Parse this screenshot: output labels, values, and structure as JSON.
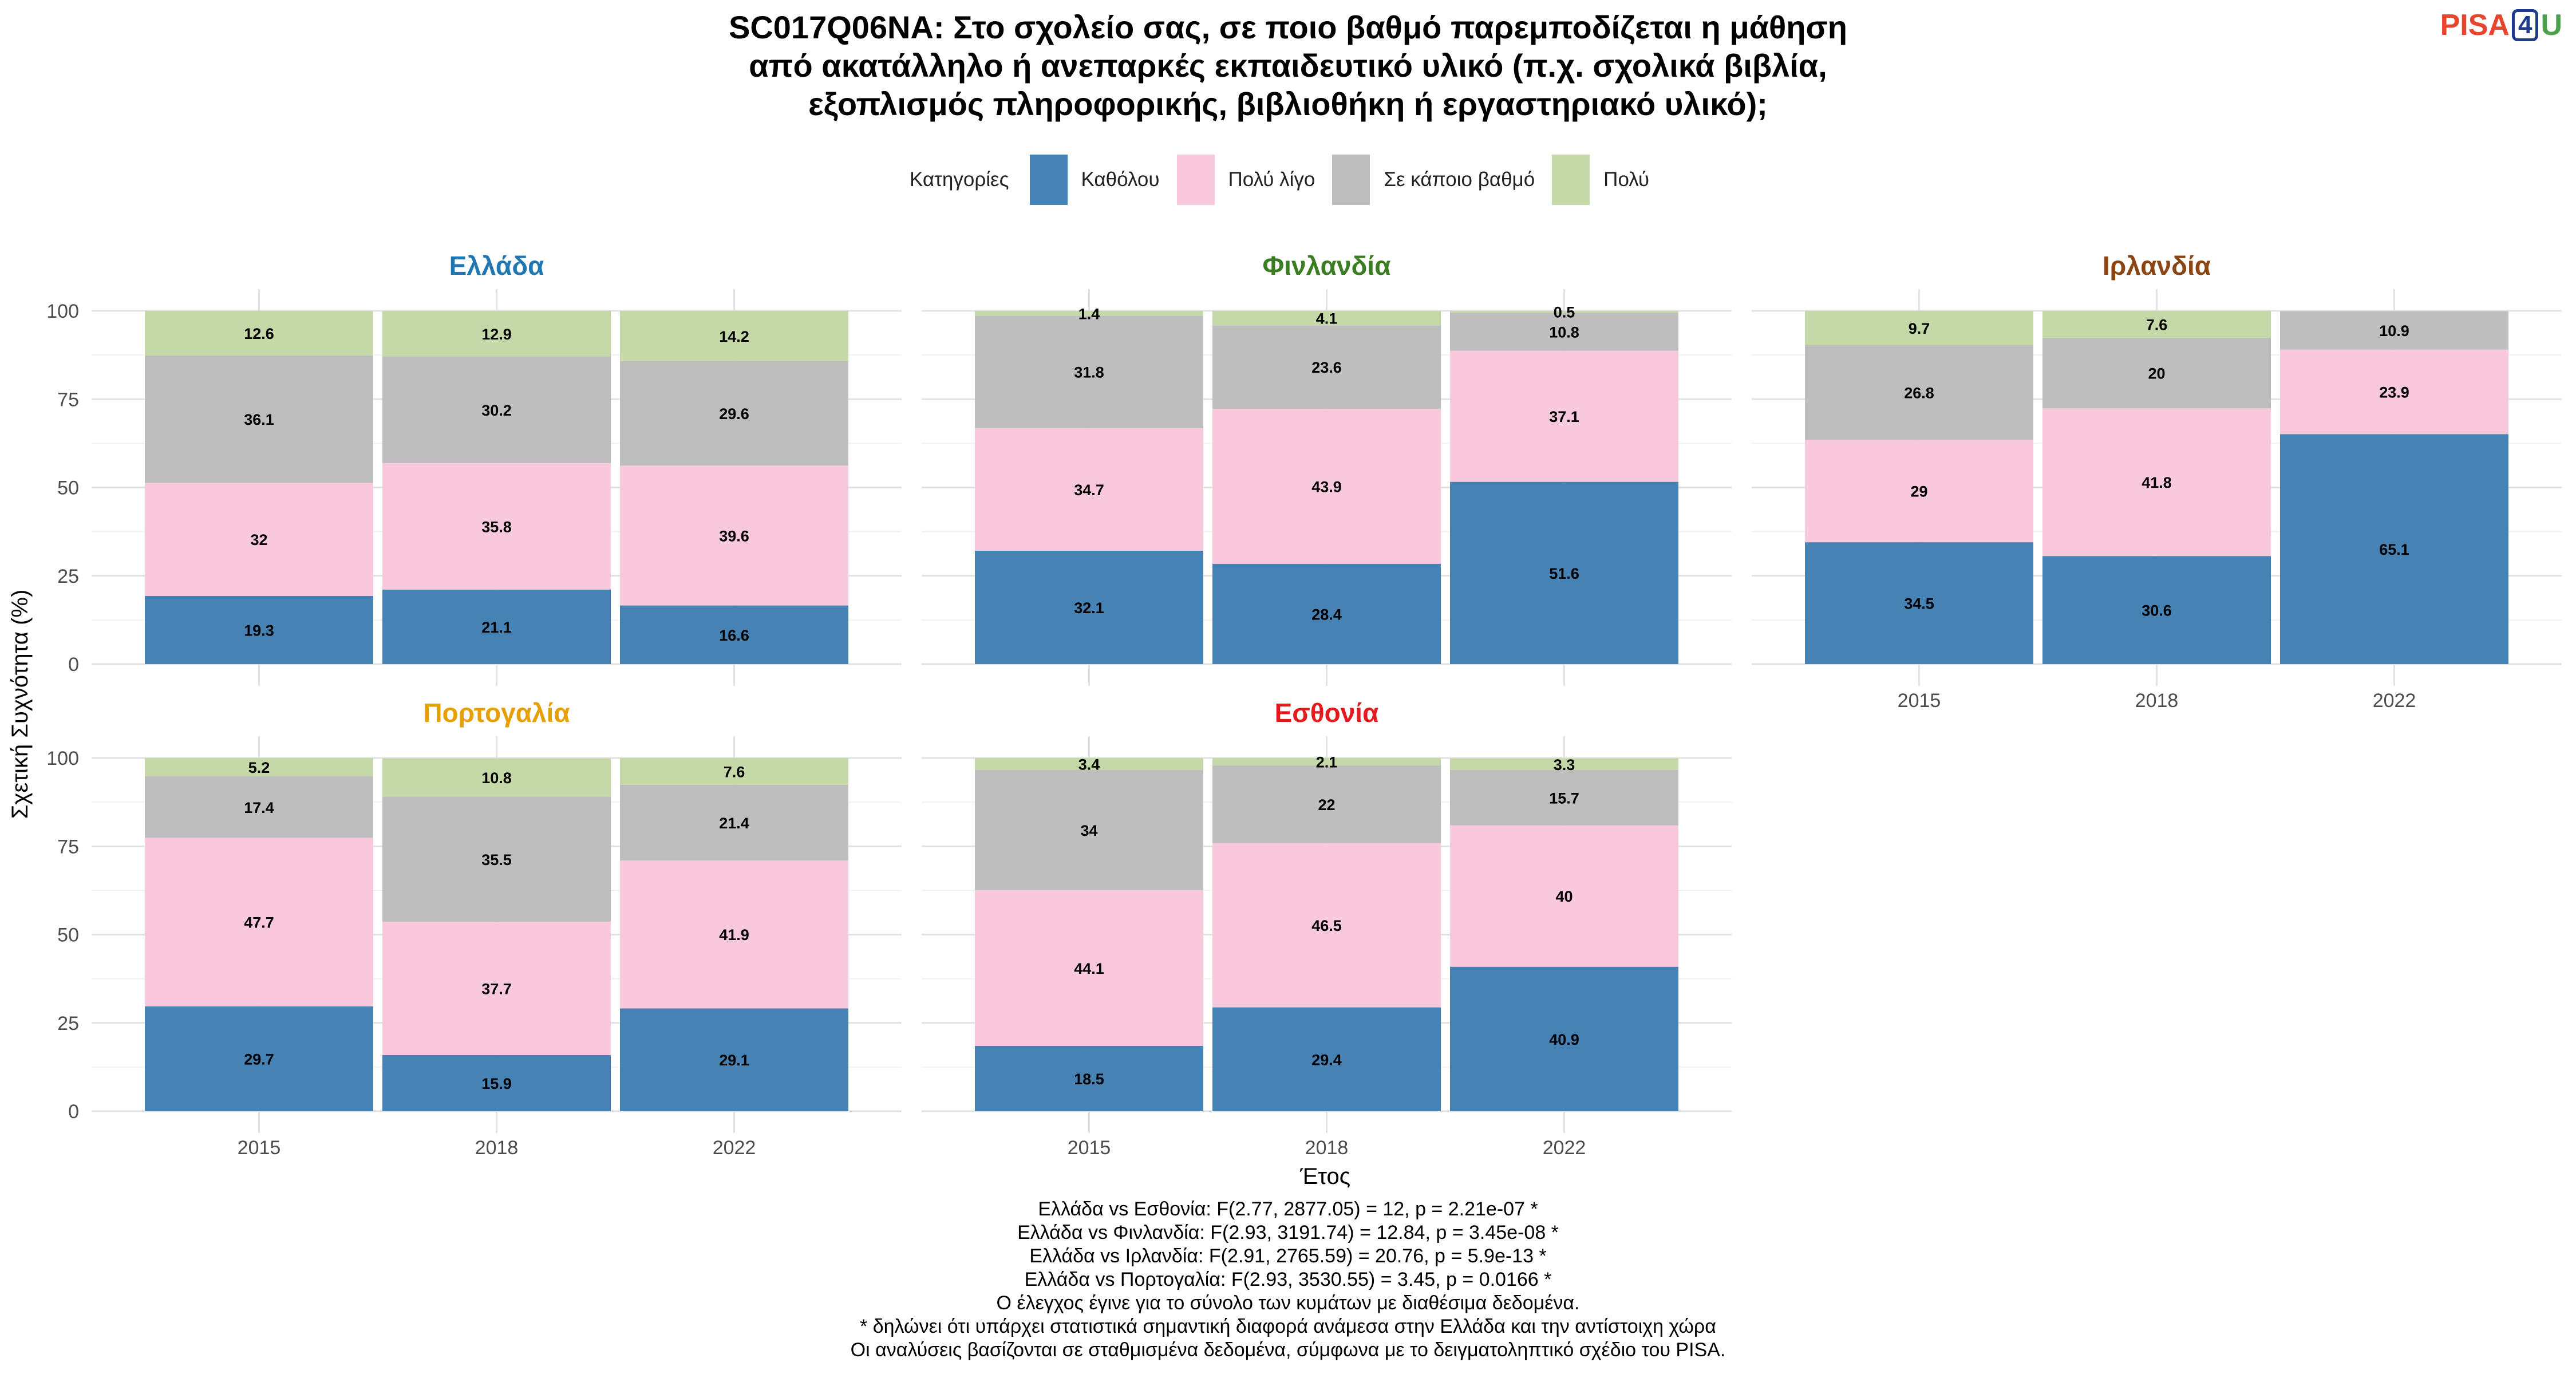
{
  "title_lines": [
    "SC017Q06NA: Στο σχολείο σας, σε ποιο βαθμό παρεμποδίζεται η μάθηση",
    "από ακατάλληλο ή ανεπαρκές εκπαιδευτικό υλικό (π.χ. σχολικά βιβλία,",
    "εξοπλισμός πληροφορικής, βιβλιοθήκη ή εργαστηριακό υλικό);"
  ],
  "logo": {
    "part1": "PISA",
    "part2": "4",
    "part3": "U"
  },
  "legend": {
    "title": "Κατηγορίες",
    "items": [
      {
        "label": "Καθόλου",
        "color": "#4682b4"
      },
      {
        "label": "Πολύ λίγο",
        "color": "#f8c8dc"
      },
      {
        "label": "Σε κάποιο βαθμό",
        "color": "#bebebe"
      },
      {
        "label": "Πολύ",
        "color": "#c4d9a7"
      }
    ]
  },
  "chart_data": {
    "type": "bar",
    "stacked": true,
    "xlabel": "Έτος",
    "ylabel": "Σχετική Συχνότητα (%)",
    "ylim": [
      0,
      100
    ],
    "yticks": [
      0,
      25,
      50,
      75,
      100
    ],
    "categories": [
      "2015",
      "2018",
      "2022"
    ],
    "series_order": [
      "Καθόλου",
      "Πολύ λίγο",
      "Σε κάποιο βαθμό",
      "Πολύ"
    ],
    "panels": [
      {
        "name": "Ελλάδα",
        "color": "#1f77b4",
        "values": [
          [
            19.3,
            32,
            36.1,
            12.6
          ],
          [
            21.1,
            35.8,
            30.2,
            12.9
          ],
          [
            16.6,
            39.6,
            29.6,
            14.2
          ]
        ]
      },
      {
        "name": "Φινλανδία",
        "color": "#3a7d22",
        "values": [
          [
            32.1,
            34.7,
            31.8,
            1.4
          ],
          [
            28.4,
            43.9,
            23.6,
            4.1
          ],
          [
            51.6,
            37.1,
            10.8,
            0.5
          ]
        ]
      },
      {
        "name": "Ιρλανδία",
        "color": "#8b4513",
        "values": [
          [
            34.5,
            29,
            26.8,
            9.7
          ],
          [
            30.6,
            41.8,
            20,
            7.6
          ],
          [
            65.1,
            23.9,
            10.9,
            null
          ]
        ]
      },
      {
        "name": "Πορτογαλία",
        "color": "#e69f00",
        "values": [
          [
            29.7,
            47.7,
            17.4,
            5.2
          ],
          [
            15.9,
            37.7,
            35.5,
            10.8
          ],
          [
            29.1,
            41.9,
            21.4,
            7.6
          ]
        ]
      },
      {
        "name": "Εσθονία",
        "color": "#e41a1c",
        "values": [
          [
            18.5,
            44.1,
            34,
            3.4
          ],
          [
            29.4,
            46.5,
            22,
            2.1
          ],
          [
            40.9,
            40,
            15.7,
            3.3
          ]
        ]
      }
    ]
  },
  "footer_lines": [
    "Ελλάδα vs Εσθονία: F(2.77, 2877.05) = 12, p = 2.21e-07 *",
    "Ελλάδα vs Φινλανδία: F(2.93, 3191.74) = 12.84, p = 3.45e-08 *",
    "Ελλάδα vs Ιρλανδία: F(2.91, 2765.59) = 20.76, p = 5.9e-13 *",
    "Ελλάδα vs Πορτογαλία: F(2.93, 3530.55) = 3.45, p = 0.0166 *",
    "Ο έλεγχος έγινε για το σύνολο των κυμάτων με διαθέσιμα δεδομένα.",
    "* δηλώνει ότι υπάρχει στατιστικά σημαντική διαφορά ανάμεσα στην Ελλάδα και την αντίστοιχη χώρα",
    "Οι αναλύσεις βασίζονται σε σταθμισμένα δεδομένα, σύμφωνα με το δειγματοληπτικό σχέδιο του PISA."
  ]
}
